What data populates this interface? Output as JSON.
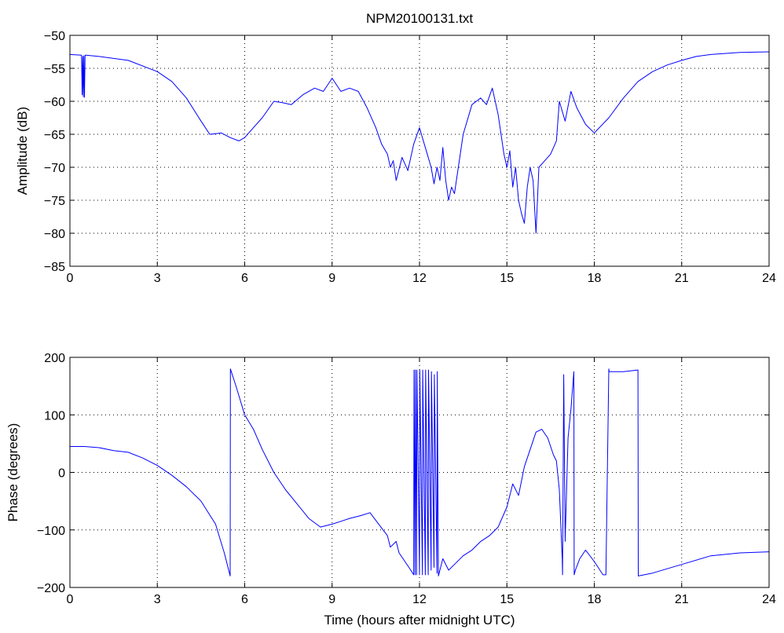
{
  "figure": {
    "title": "NPM20100131.txt"
  },
  "chart_data": [
    {
      "type": "line",
      "title": "NPM20100131.txt",
      "xlabel": "",
      "ylabel": "Amplitude (dB)",
      "xlim": [
        0,
        24
      ],
      "ylim": [
        -85,
        -50
      ],
      "xticks": [
        0,
        3,
        6,
        9,
        12,
        15,
        18,
        21,
        24
      ],
      "yticks": [
        -85,
        -80,
        -75,
        -70,
        -65,
        -60,
        -55,
        -50
      ],
      "grid": true,
      "series": [
        {
          "color": "#0000ff",
          "x": [
            0,
            0.4,
            0.42,
            0.44,
            0.46,
            0.48,
            0.5,
            0.52,
            0.55,
            1.0,
            2.0,
            3.0,
            3.5,
            4.0,
            4.5,
            4.8,
            5.0,
            5.2,
            5.5,
            5.8,
            6.0,
            6.3,
            6.6,
            7.0,
            7.3,
            7.6,
            8.0,
            8.4,
            8.7,
            9.0,
            9.3,
            9.6,
            9.9,
            10.2,
            10.5,
            10.7,
            10.9,
            11.0,
            11.1,
            11.2,
            11.4,
            11.6,
            11.8,
            12.0,
            12.2,
            12.4,
            12.5,
            12.6,
            12.7,
            12.8,
            12.9,
            13.0,
            13.1,
            13.2,
            13.5,
            13.8,
            14.1,
            14.3,
            14.5,
            14.7,
            14.9,
            15.0,
            15.1,
            15.2,
            15.3,
            15.4,
            15.5,
            15.6,
            15.7,
            15.8,
            15.9,
            16.0,
            16.1,
            16.3,
            16.5,
            16.7,
            16.8,
            17.0,
            17.2,
            17.4,
            17.7,
            18.0,
            18.5,
            19.0,
            19.5,
            20.0,
            20.5,
            21.0,
            21.5,
            22.0,
            23.0,
            24.0
          ],
          "y": [
            -52.9,
            -53.0,
            -59.0,
            -53.2,
            -59.3,
            -53.1,
            -59.4,
            -53.0,
            -53.0,
            -53.2,
            -53.8,
            -55.5,
            -57.0,
            -59.5,
            -63.0,
            -65.0,
            -64.9,
            -64.8,
            -65.5,
            -66.0,
            -65.5,
            -64.0,
            -62.5,
            -60.0,
            -60.2,
            -60.5,
            -59.0,
            -58.0,
            -58.5,
            -56.5,
            -58.5,
            -58.0,
            -58.5,
            -61.0,
            -64.0,
            -66.5,
            -68.0,
            -70.0,
            -69.0,
            -72.0,
            -68.5,
            -70.5,
            -66.5,
            -64.0,
            -67.0,
            -70.0,
            -72.5,
            -70.0,
            -72.0,
            -67.0,
            -72.0,
            -75.0,
            -73.0,
            -74.0,
            -65.0,
            -60.5,
            -59.5,
            -60.5,
            -58.0,
            -62.0,
            -68.0,
            -70.0,
            -67.5,
            -73.0,
            -70.0,
            -75.0,
            -77.0,
            -78.5,
            -73.0,
            -70.0,
            -72.0,
            -80.0,
            -70.0,
            -69.0,
            -68.0,
            -66.0,
            -60.0,
            -63.0,
            -58.5,
            -61.0,
            -63.5,
            -64.8,
            -62.5,
            -59.5,
            -57.0,
            -55.5,
            -54.5,
            -53.8,
            -53.2,
            -52.9,
            -52.6,
            -52.5
          ]
        }
      ]
    },
    {
      "type": "line",
      "title": "",
      "xlabel": "Time (hours after midnight UTC)",
      "ylabel": "Phase (degrees)",
      "xlim": [
        0,
        24
      ],
      "ylim": [
        -200,
        200
      ],
      "xticks": [
        0,
        3,
        6,
        9,
        12,
        15,
        18,
        21,
        24
      ],
      "yticks": [
        -200,
        -100,
        0,
        100,
        200
      ],
      "grid": true,
      "series": [
        {
          "color": "#0000ff",
          "x": [
            0,
            0.5,
            1.0,
            1.5,
            2.0,
            2.5,
            3.0,
            3.5,
            4.0,
            4.5,
            5.0,
            5.3,
            5.5,
            5.51,
            5.7,
            6.0,
            6.3,
            6.6,
            7.0,
            7.4,
            7.8,
            8.2,
            8.6,
            9.0,
            9.3,
            9.6,
            10.0,
            10.3,
            10.6,
            10.9,
            11.0,
            11.2,
            11.3,
            11.5,
            11.7,
            11.8,
            11.81,
            11.85,
            11.86,
            11.9,
            11.91,
            12.0,
            12.01,
            12.1,
            12.11,
            12.2,
            12.21,
            12.3,
            12.31,
            12.4,
            12.41,
            12.5,
            12.51,
            12.6,
            12.61,
            12.65,
            12.8,
            13.0,
            13.2,
            13.5,
            13.8,
            14.1,
            14.4,
            14.7,
            15.0,
            15.2,
            15.4,
            15.6,
            15.8,
            16.0,
            16.2,
            16.4,
            16.6,
            16.7,
            16.8,
            16.9,
            16.91,
            16.95,
            17.0,
            17.1,
            17.2,
            17.3,
            17.31,
            17.35,
            17.5,
            17.7,
            18.0,
            18.3,
            18.4,
            18.5,
            18.51,
            19.0,
            19.5,
            19.51,
            20.0,
            21.0,
            22.0,
            23.0,
            24.0
          ],
          "y": [
            45,
            45,
            43,
            38,
            35,
            25,
            12,
            -5,
            -25,
            -50,
            -90,
            -140,
            -180,
            180,
            150,
            100,
            75,
            40,
            0,
            -30,
            -55,
            -80,
            -95,
            -90,
            -85,
            -80,
            -75,
            -70,
            -90,
            -110,
            -130,
            -120,
            -140,
            -155,
            -170,
            -178,
            178,
            -178,
            178,
            -178,
            178,
            -178,
            178,
            -178,
            178,
            -178,
            178,
            -178,
            178,
            -170,
            175,
            -165,
            170,
            -175,
            175,
            -180,
            -150,
            -170,
            -160,
            -145,
            -135,
            -120,
            -110,
            -95,
            -60,
            -20,
            -40,
            10,
            40,
            70,
            75,
            60,
            30,
            20,
            -30,
            -150,
            -178,
            170,
            -120,
            60,
            110,
            175,
            -178,
            -170,
            -150,
            -135,
            -155,
            -178,
            -178,
            180,
            175,
            175,
            178,
            -180,
            -175,
            -160,
            -145,
            -140,
            -138
          ]
        }
      ]
    }
  ]
}
